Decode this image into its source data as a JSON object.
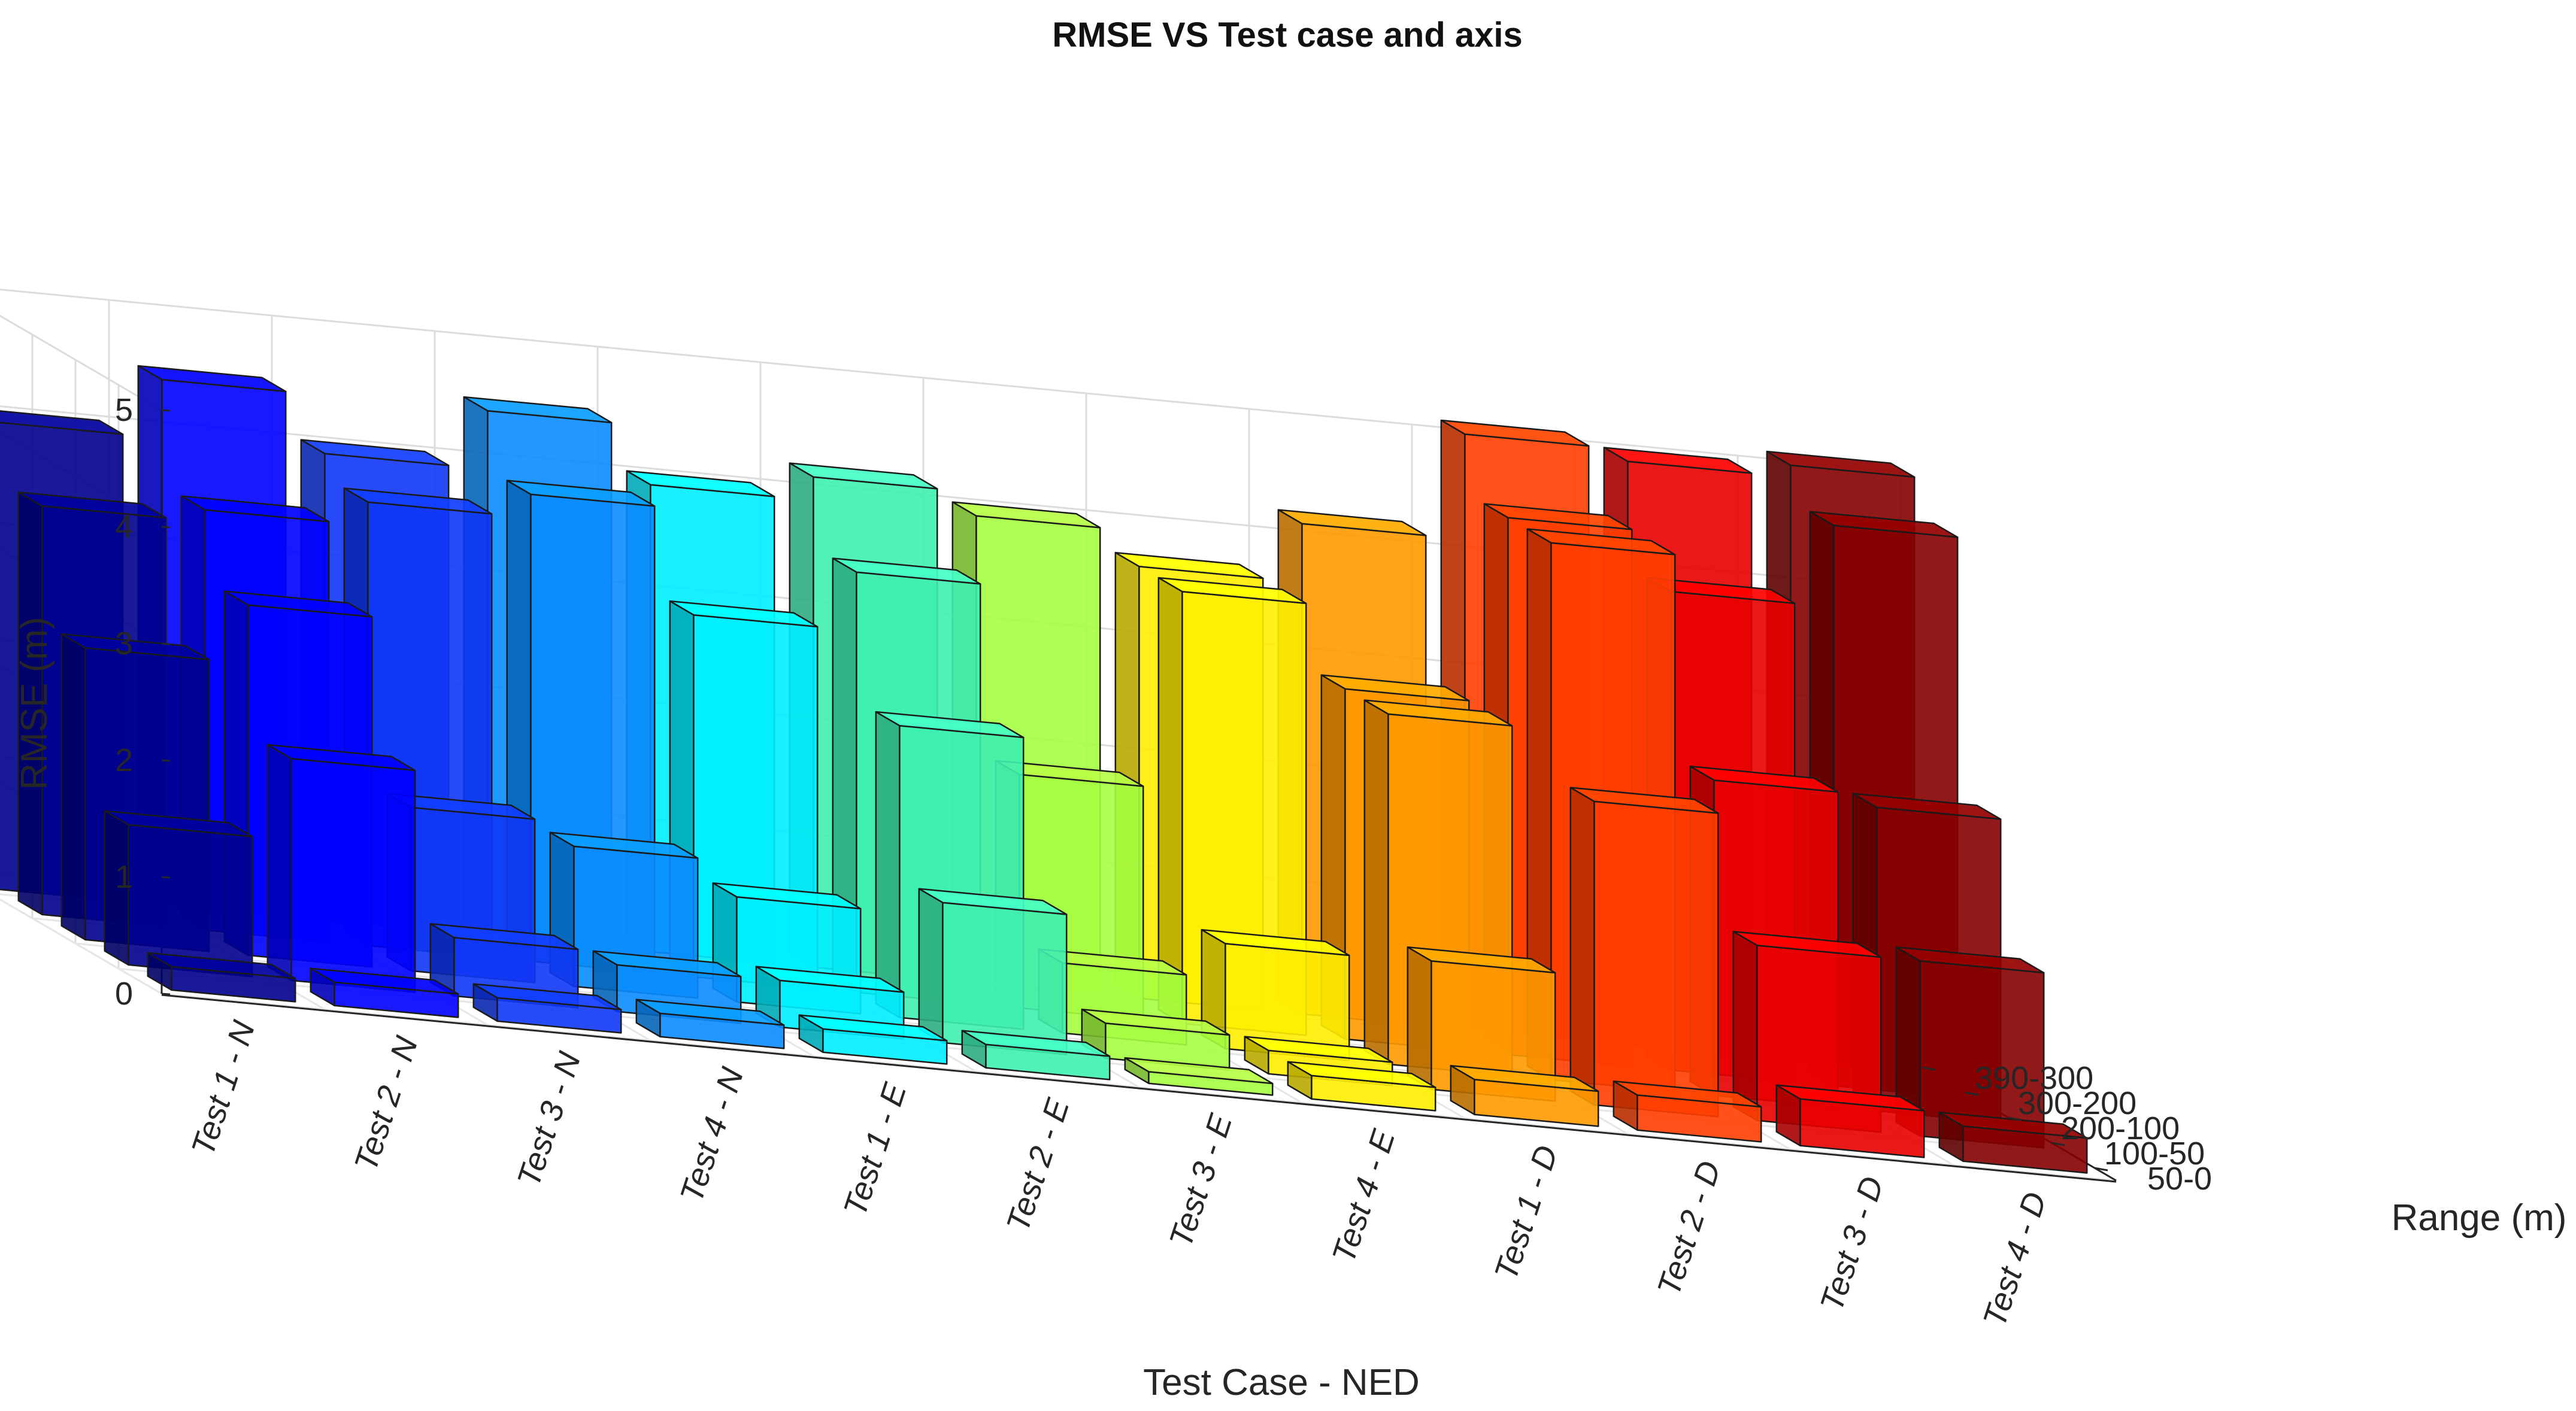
{
  "chart_data": {
    "type": "bar3d",
    "title": "RMSE VS Test case and axis",
    "xlabel": "Test Case - NED",
    "ylabel": "RMSE (m)",
    "zlabel": "Range (m)",
    "categories": [
      "Test 1 - N",
      "Test 2 - N",
      "Test 3 - N",
      "Test 4 - N",
      "Test 1 - E",
      "Test 2 - E",
      "Test 3 - E",
      "Test 4 - E",
      "Test 1 - D",
      "Test 2 - D",
      "Test 3 - D",
      "Test 4 - D"
    ],
    "depth_categories": [
      "50-0",
      "100-50",
      "200-100",
      "300-200",
      "390-300"
    ],
    "yticks": [
      "0",
      "1",
      "2",
      "3",
      "4",
      "5"
    ],
    "ylim": [
      0,
      5
    ],
    "colors": [
      "#00008f",
      "#0000ff",
      "#0f37f5",
      "#0a8cff",
      "#00eeff",
      "#3ef0b0",
      "#a5ff40",
      "#ffee00",
      "#ff9900",
      "#ff3e00",
      "#e80000",
      "#850000"
    ],
    "series": [
      {
        "name": "50-0",
        "values": [
          0.2,
          0.2,
          0.2,
          0.2,
          0.2,
          0.2,
          0.1,
          0.2,
          0.3,
          0.3,
          0.4,
          0.3
        ]
      },
      {
        "name": "100-50",
        "values": [
          1.2,
          1.9,
          0.5,
          0.4,
          0.4,
          1.2,
          0.3,
          0.2,
          1.1,
          2.6,
          1.5,
          1.5
        ]
      },
      {
        "name": "200-100",
        "values": [
          2.5,
          3.0,
          1.4,
          1.2,
          0.9,
          2.5,
          0.6,
          0.9,
          3.0,
          4.6,
          2.7,
          2.6
        ]
      },
      {
        "name": "300-200",
        "values": [
          3.5,
          3.6,
          3.8,
          4.0,
          3.1,
          3.6,
          2.0,
          3.7,
          3.0,
          4.6,
          4.1,
          4.8
        ]
      },
      {
        "name": "390-300",
        "values": [
          4.0,
          4.5,
          4.0,
          4.5,
          4.0,
          4.2,
          4.0,
          3.7,
          4.2,
          5.1,
          5.0,
          5.1
        ]
      }
    ]
  }
}
